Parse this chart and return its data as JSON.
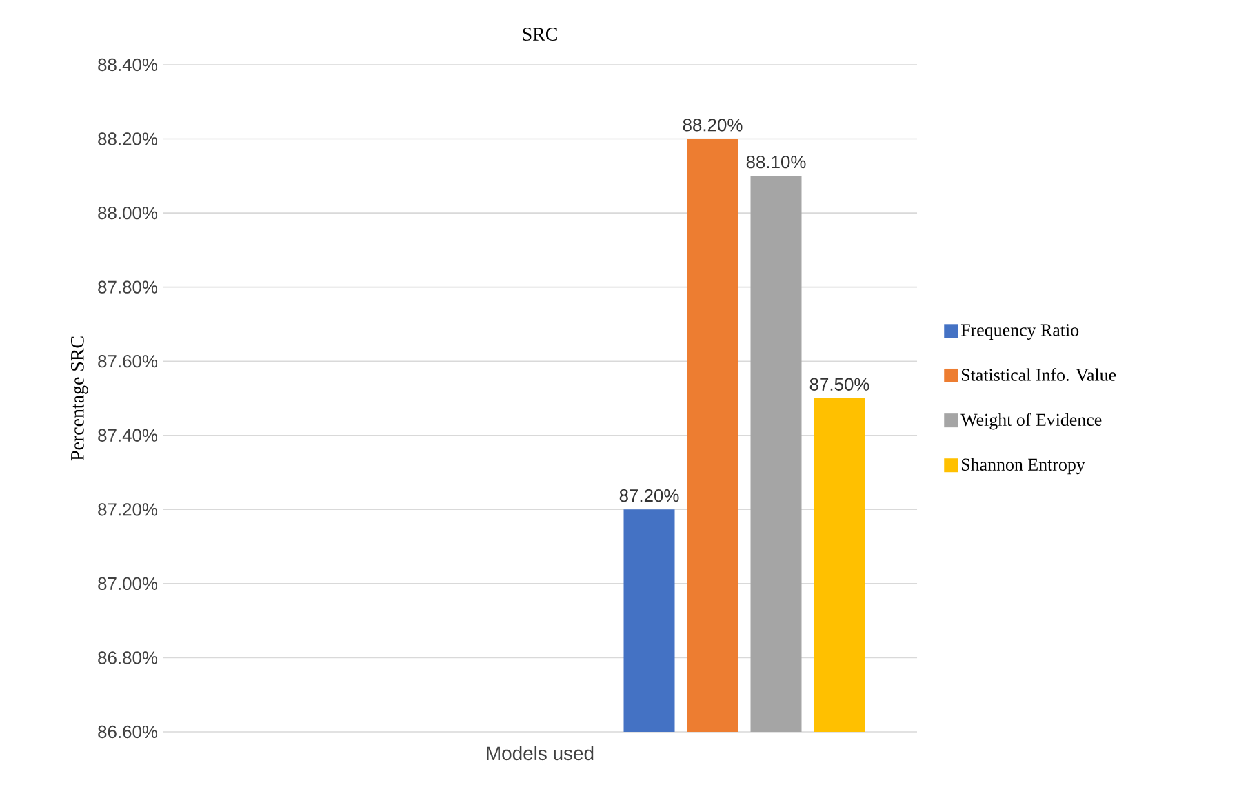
{
  "chart_data": {
    "type": "bar",
    "title": "SRC",
    "xlabel": "Models used",
    "ylabel": "Percentage SRC",
    "categories": [
      null
    ],
    "series": [
      {
        "name": "Frequency Ratio",
        "color": "#4472c4",
        "values": [
          87.2
        ],
        "value_labels": [
          "87.20%"
        ]
      },
      {
        "name": "Statistical Info. Value",
        "color": "#ed7d31",
        "values": [
          88.2
        ],
        "value_labels": [
          "88.20%"
        ]
      },
      {
        "name": "Weight of Evidence",
        "color": "#a5a5a5",
        "values": [
          88.1
        ],
        "value_labels": [
          "88.10%"
        ]
      },
      {
        "name": "Shannon Entropy",
        "color": "#ffc000",
        "values": [
          87.5
        ],
        "value_labels": [
          "87.50%"
        ]
      }
    ],
    "ylim": [
      86.6,
      88.4
    ],
    "yticks": [
      {
        "value": 86.6,
        "label": "86.60%"
      },
      {
        "value": 86.8,
        "label": "86.80%"
      },
      {
        "value": 87.0,
        "label": "87.00%"
      },
      {
        "value": 87.2,
        "label": "87.20%"
      },
      {
        "value": 87.4,
        "label": "87.40%"
      },
      {
        "value": 87.6,
        "label": "87.60%"
      },
      {
        "value": 87.8,
        "label": "87.80%"
      },
      {
        "value": 88.0,
        "label": "88.00%"
      },
      {
        "value": 88.2,
        "label": "88.20%"
      },
      {
        "value": 88.4,
        "label": "88.40%"
      }
    ],
    "grid": "y",
    "legend": "right"
  }
}
